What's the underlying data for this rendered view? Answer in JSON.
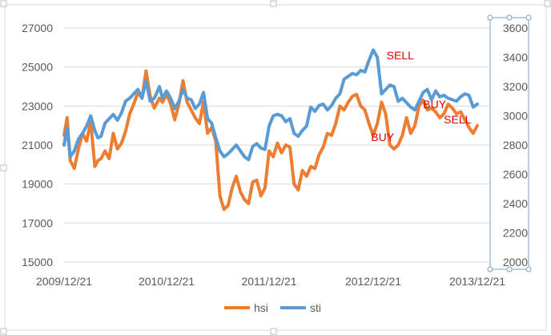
{
  "chart_data": {
    "type": "line",
    "title": "",
    "x_tick_labels": [
      "2009/12/21",
      "2010/12/21",
      "2011/12/21",
      "2012/12/21",
      "2013/12/21"
    ],
    "x_range": [
      0,
      4.0
    ],
    "y_left": {
      "range": [
        15000,
        27000
      ],
      "ticks": [
        15000,
        17000,
        19000,
        21000,
        23000,
        25000,
        27000
      ]
    },
    "y_right": {
      "range": [
        2000,
        3650
      ],
      "ticks": [
        2000,
        2200,
        2400,
        2600,
        2800,
        3000,
        3200,
        3400,
        3600
      ]
    },
    "grid": "horizontal",
    "legend_position": "bottom",
    "series": [
      {
        "name": "hsi",
        "axis": "left",
        "color": "#ed7d31",
        "x": [
          0.0,
          0.03,
          0.06,
          0.1,
          0.14,
          0.18,
          0.22,
          0.26,
          0.3,
          0.33,
          0.36,
          0.4,
          0.44,
          0.48,
          0.52,
          0.56,
          0.6,
          0.64,
          0.68,
          0.72,
          0.76,
          0.8,
          0.84,
          0.88,
          0.9,
          0.93,
          0.96,
          1.0,
          1.04,
          1.08,
          1.12,
          1.16,
          1.2,
          1.24,
          1.28,
          1.32,
          1.36,
          1.4,
          1.44,
          1.48,
          1.52,
          1.56,
          1.6,
          1.64,
          1.68,
          1.72,
          1.76,
          1.8,
          1.84,
          1.88,
          1.92,
          1.96,
          2.0,
          2.04,
          2.08,
          2.12,
          2.16,
          2.2,
          2.24,
          2.28,
          2.32,
          2.36,
          2.4,
          2.44,
          2.48,
          2.52,
          2.56,
          2.6,
          2.64,
          2.68,
          2.72,
          2.76,
          2.8,
          2.84,
          2.88,
          2.92,
          2.96,
          3.0,
          3.04,
          3.08,
          3.12,
          3.16,
          3.2,
          3.24,
          3.28,
          3.32,
          3.36,
          3.4,
          3.44,
          3.48,
          3.52,
          3.56,
          3.6,
          3.64,
          3.68,
          3.72,
          3.76,
          3.8,
          3.84,
          3.88,
          3.92,
          3.96,
          4.0
        ],
        "values": [
          21500,
          22400,
          20200,
          19800,
          20800,
          21600,
          21200,
          22200,
          19900,
          20200,
          20300,
          20700,
          20300,
          21600,
          20800,
          21100,
          21700,
          22600,
          23100,
          23700,
          23400,
          24800,
          23500,
          22900,
          23100,
          23400,
          23200,
          23600,
          23100,
          22300,
          23100,
          24300,
          23200,
          22800,
          22400,
          22100,
          23200,
          21600,
          21900,
          21200,
          18400,
          17700,
          17900,
          18800,
          19400,
          18600,
          18200,
          18000,
          19100,
          19200,
          18400,
          18800,
          20700,
          20400,
          21100,
          20600,
          21000,
          20900,
          19000,
          18700,
          19700,
          19400,
          19900,
          19800,
          20500,
          20900,
          21600,
          21500,
          22100,
          23000,
          22800,
          23200,
          23500,
          23600,
          23000,
          22800,
          22100,
          21500,
          22100,
          23200,
          22600,
          21000,
          20800,
          21000,
          21500,
          22400,
          21600,
          22000,
          23000,
          23300,
          22800,
          22900,
          22700,
          22400,
          22600,
          23100,
          22900,
          22600,
          22700,
          22300,
          21900,
          21600,
          22000
        ]
      },
      {
        "name": "sti",
        "axis": "right",
        "color": "#5b9bd5",
        "x": [
          0.0,
          0.03,
          0.06,
          0.1,
          0.14,
          0.18,
          0.22,
          0.26,
          0.3,
          0.33,
          0.36,
          0.4,
          0.44,
          0.48,
          0.52,
          0.56,
          0.6,
          0.64,
          0.68,
          0.72,
          0.76,
          0.8,
          0.84,
          0.88,
          0.9,
          0.93,
          0.96,
          1.0,
          1.04,
          1.08,
          1.12,
          1.16,
          1.2,
          1.24,
          1.28,
          1.32,
          1.36,
          1.4,
          1.44,
          1.48,
          1.52,
          1.56,
          1.6,
          1.64,
          1.68,
          1.72,
          1.76,
          1.8,
          1.84,
          1.88,
          1.92,
          1.96,
          2.0,
          2.04,
          2.08,
          2.12,
          2.16,
          2.2,
          2.24,
          2.28,
          2.32,
          2.36,
          2.4,
          2.44,
          2.48,
          2.52,
          2.56,
          2.6,
          2.64,
          2.68,
          2.72,
          2.76,
          2.8,
          2.84,
          2.88,
          2.92,
          2.96,
          3.0,
          3.04,
          3.08,
          3.12,
          3.16,
          3.2,
          3.24,
          3.28,
          3.32,
          3.36,
          3.4,
          3.44,
          3.48,
          3.52,
          3.56,
          3.6,
          3.64,
          3.68,
          3.72,
          3.76,
          3.8,
          3.84,
          3.88,
          3.92,
          3.96,
          4.0
        ],
        "values": [
          2800,
          2920,
          2720,
          2760,
          2840,
          2880,
          2930,
          3000,
          2900,
          2850,
          2860,
          2950,
          2980,
          3010,
          2970,
          3020,
          3100,
          3120,
          3150,
          3180,
          3120,
          3240,
          3100,
          3120,
          3150,
          3200,
          3120,
          3170,
          3120,
          3050,
          3100,
          3180,
          3120,
          3110,
          3050,
          3080,
          3160,
          2980,
          2950,
          2850,
          2760,
          2720,
          2740,
          2770,
          2800,
          2760,
          2720,
          2700,
          2790,
          2810,
          2780,
          2770,
          2930,
          3000,
          3010,
          3000,
          2960,
          2980,
          2880,
          2860,
          2900,
          2930,
          3060,
          3030,
          3070,
          3080,
          3040,
          3070,
          3120,
          3150,
          3250,
          3270,
          3290,
          3280,
          3310,
          3300,
          3380,
          3450,
          3400,
          3150,
          3180,
          3210,
          3200,
          3100,
          3120,
          3090,
          3060,
          3040,
          3100,
          3160,
          3180,
          3110,
          3170,
          3130,
          3140,
          3120,
          3110,
          3100,
          3130,
          3150,
          3140,
          3060,
          3080
        ]
      }
    ],
    "annotations": [
      {
        "text": "SELL",
        "x": 3.26,
        "y_left": 25400,
        "axis": "left"
      },
      {
        "text": "BUY",
        "x": 3.09,
        "y_left": 21200,
        "axis": "left"
      },
      {
        "text": "BUY",
        "x": 3.59,
        "y_left": 22900,
        "axis": "left"
      },
      {
        "text": "SELL",
        "x": 3.81,
        "y_left": 22100,
        "axis": "left"
      }
    ]
  },
  "legend": {
    "items": [
      {
        "label": "hsi",
        "color": "#ed7d31"
      },
      {
        "label": "sti",
        "color": "#5b9bd5"
      }
    ]
  }
}
